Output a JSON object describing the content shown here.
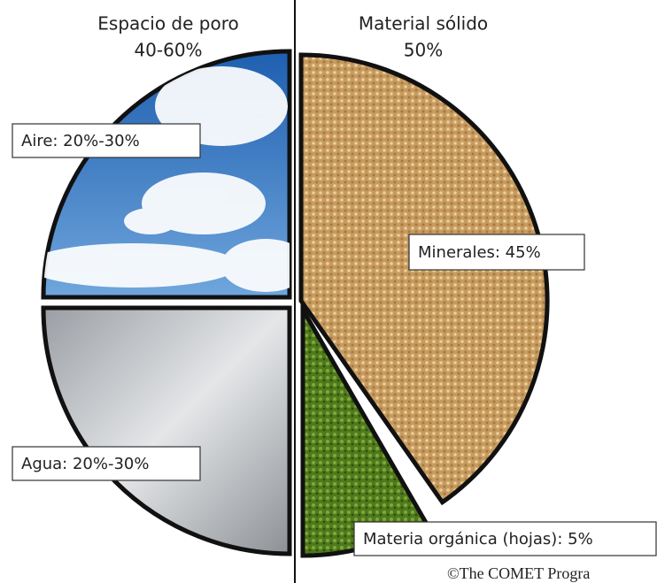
{
  "headers": [
    {
      "title": "Espacio de poro",
      "value": "40-60%"
    },
    {
      "title": "Material sólido",
      "value": "50%"
    }
  ],
  "labels": {
    "air": "Aire: 20%-30%",
    "water": "Agua: 20%-30%",
    "minerals": "Minerales: 45%",
    "organic": "Materia orgánica (hojas): 5%"
  },
  "credit": "©The COMET Progra"
}
